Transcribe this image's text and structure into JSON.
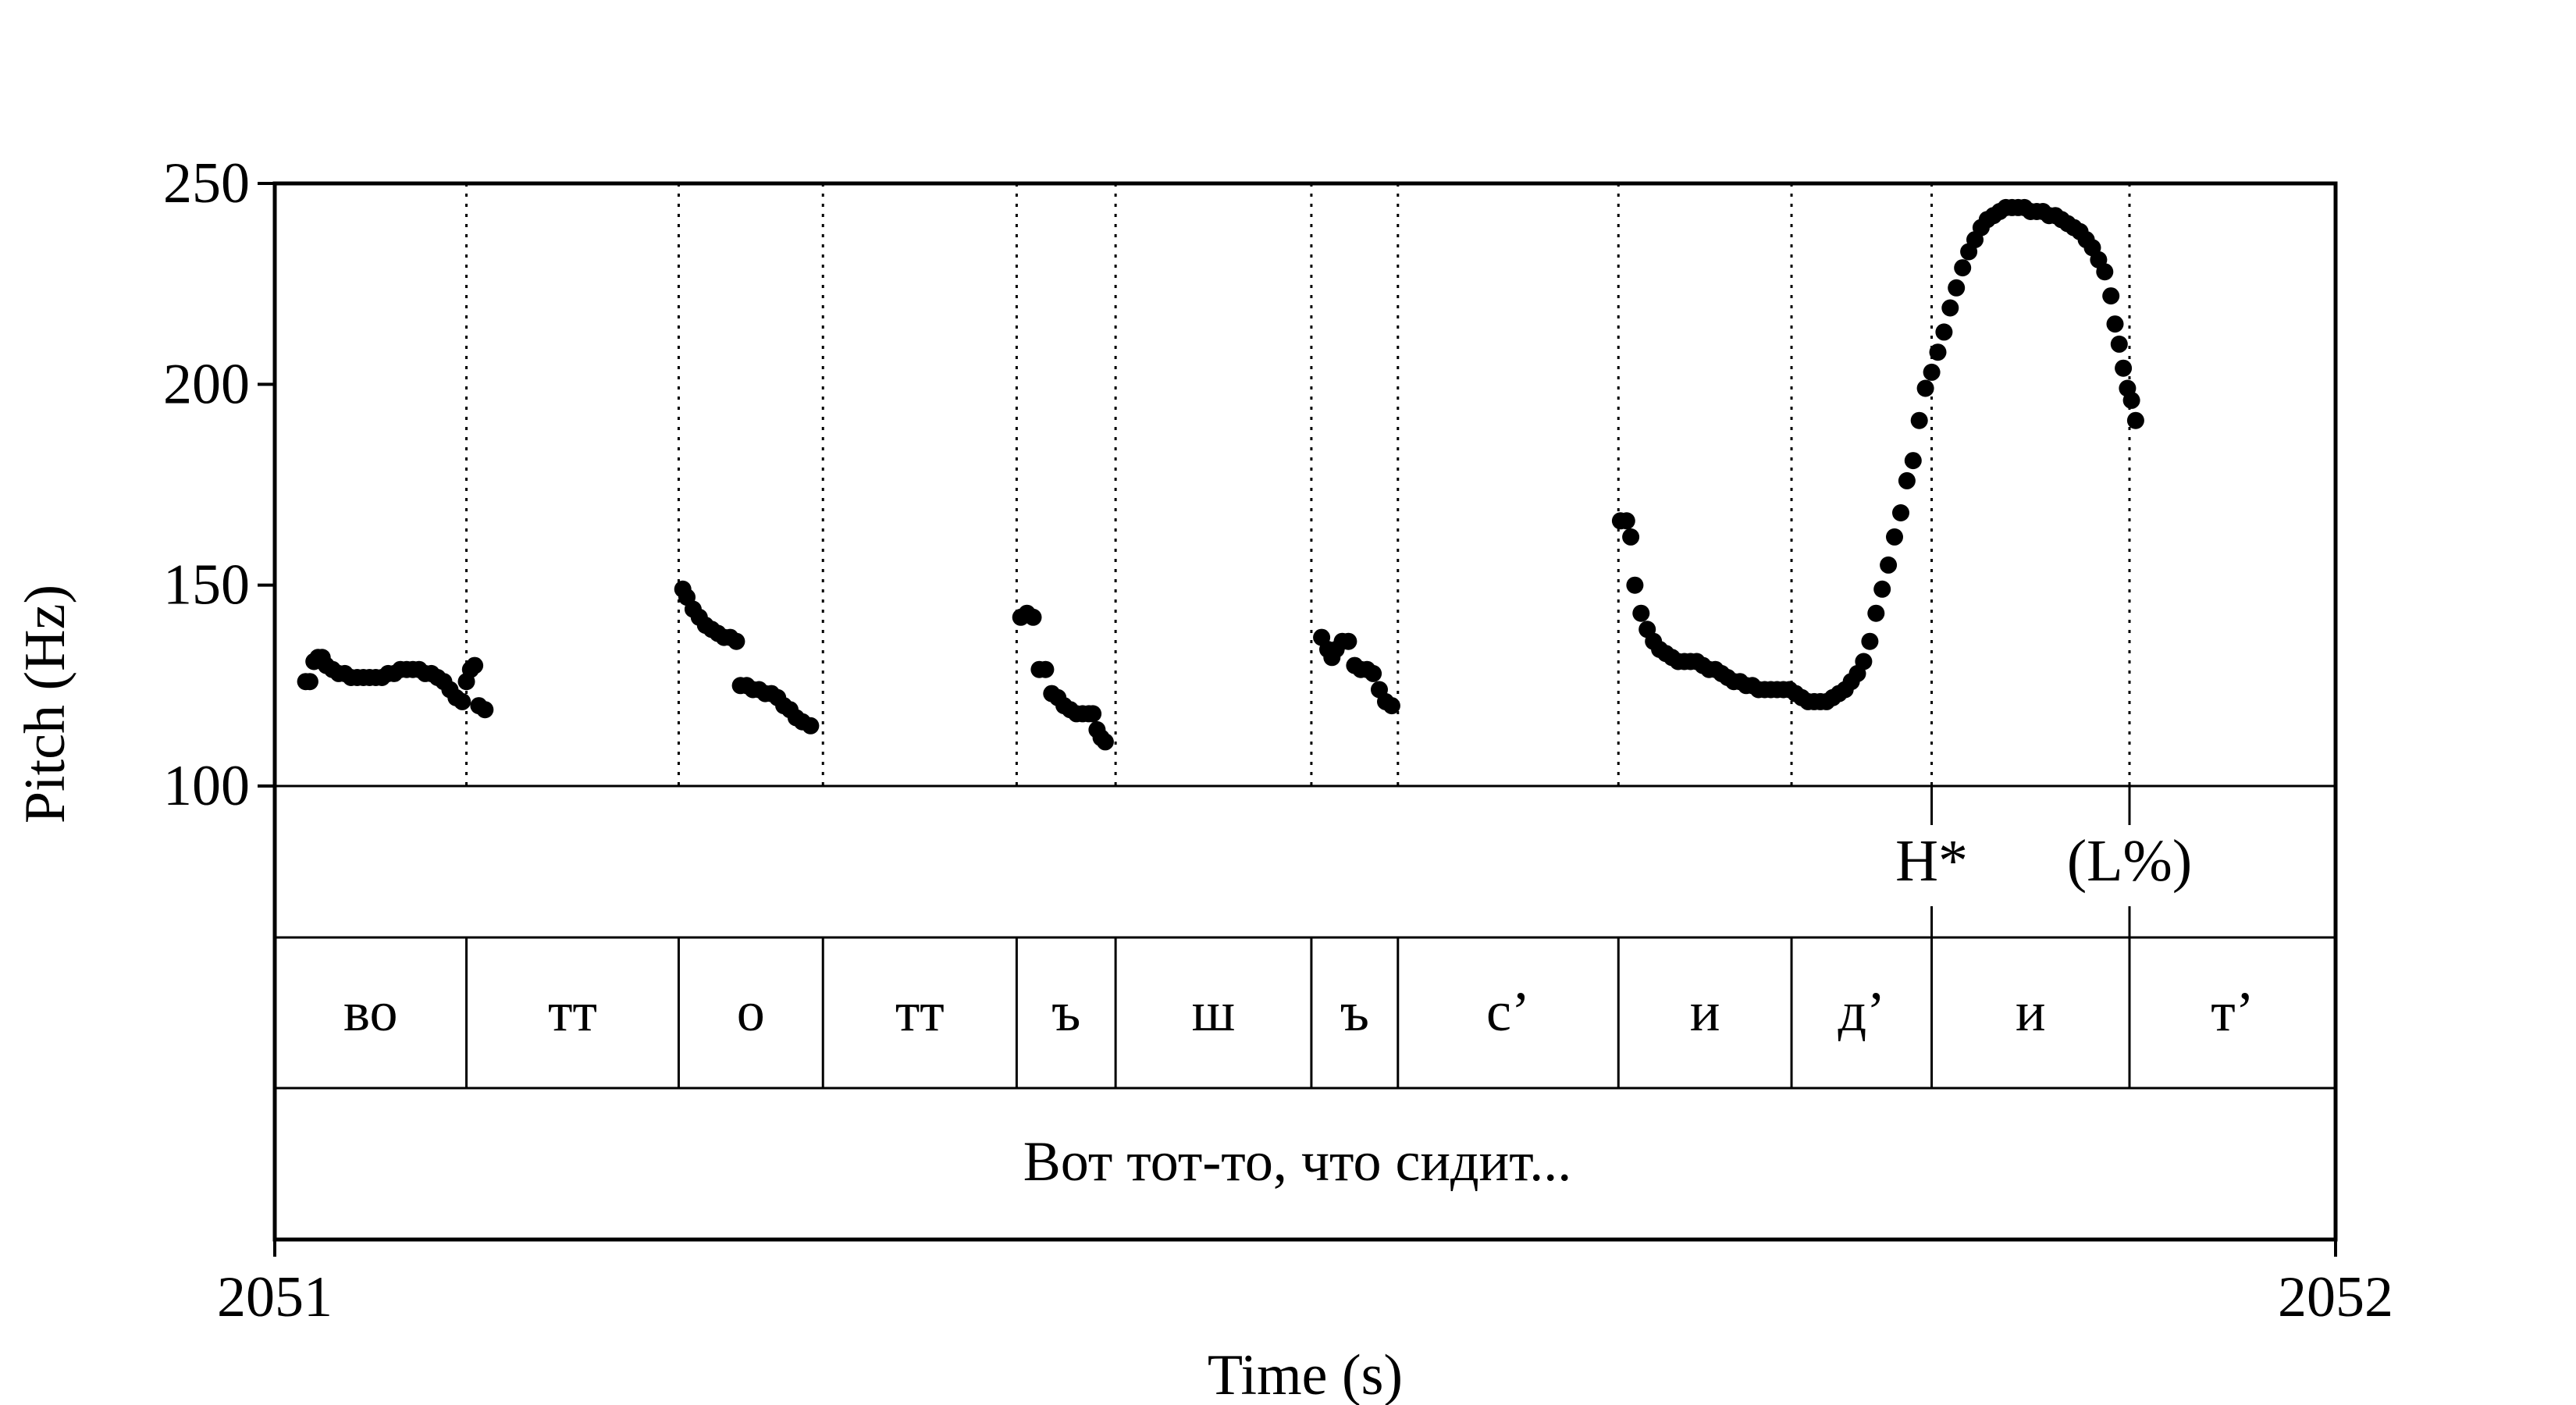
{
  "chart_data": {
    "type": "scatter",
    "title": "",
    "xlabel": "Time (s)",
    "ylabel": "Pitch (Hz)",
    "xlim": [
      2051,
      2052
    ],
    "ylim": [
      100,
      250
    ],
    "x_ticks": [
      "2051",
      "2052"
    ],
    "y_ticks": [
      "100",
      "150",
      "200",
      "250"
    ],
    "grid": false,
    "marker_color": "#000000",
    "boundaries": [
      2051.093,
      2051.196,
      2051.266,
      2051.36,
      2051.408,
      2051.503,
      2051.545,
      2051.652,
      2051.736,
      2051.804,
      2051.9
    ],
    "tones": [
      {
        "label": "H*",
        "t": 2051.804
      },
      {
        "label": "(L%)",
        "t": 2051.9
      }
    ],
    "segments": [
      {
        "label": "во",
        "start": 2051.0,
        "end": 2051.093
      },
      {
        "label": "тт",
        "start": 2051.093,
        "end": 2051.196
      },
      {
        "label": "о",
        "start": 2051.196,
        "end": 2051.266
      },
      {
        "label": "тт",
        "start": 2051.266,
        "end": 2051.36
      },
      {
        "label": "ъ",
        "start": 2051.36,
        "end": 2051.408
      },
      {
        "label": "ш",
        "start": 2051.408,
        "end": 2051.503
      },
      {
        "label": "ъ",
        "start": 2051.503,
        "end": 2051.545
      },
      {
        "label": "с’",
        "start": 2051.545,
        "end": 2051.652
      },
      {
        "label": "и",
        "start": 2051.652,
        "end": 2051.736
      },
      {
        "label": "д’",
        "start": 2051.736,
        "end": 2051.804
      },
      {
        "label": "и",
        "start": 2051.804,
        "end": 2051.9
      },
      {
        "label": "т’",
        "start": 2051.9,
        "end": 2052.0
      }
    ],
    "sentence": "Вот тот-то, что сидит...",
    "series": [
      {
        "points": [
          [
            2051.015,
            126
          ],
          [
            2051.017,
            126
          ],
          [
            2051.019,
            131
          ],
          [
            2051.021,
            132
          ],
          [
            2051.023,
            132
          ],
          [
            2051.025,
            130
          ],
          [
            2051.028,
            129
          ],
          [
            2051.031,
            128
          ],
          [
            2051.034,
            128
          ],
          [
            2051.037,
            127
          ],
          [
            2051.04,
            127
          ],
          [
            2051.043,
            127
          ],
          [
            2051.046,
            127
          ],
          [
            2051.049,
            127
          ],
          [
            2051.052,
            127
          ],
          [
            2051.055,
            128
          ],
          [
            2051.058,
            128
          ],
          [
            2051.061,
            129
          ],
          [
            2051.064,
            129
          ],
          [
            2051.067,
            129
          ],
          [
            2051.07,
            129
          ],
          [
            2051.073,
            128
          ],
          [
            2051.076,
            128
          ],
          [
            2051.079,
            127
          ],
          [
            2051.082,
            126
          ],
          [
            2051.085,
            124
          ],
          [
            2051.088,
            122
          ],
          [
            2051.091,
            121
          ],
          [
            2051.093,
            126
          ],
          [
            2051.095,
            129
          ],
          [
            2051.097,
            130
          ],
          [
            2051.099,
            120
          ],
          [
            2051.102,
            119
          ],
          [
            2051.198,
            149
          ],
          [
            2051.2,
            147
          ],
          [
            2051.203,
            144
          ],
          [
            2051.206,
            142
          ],
          [
            2051.209,
            140
          ],
          [
            2051.212,
            139
          ],
          [
            2051.215,
            138
          ],
          [
            2051.218,
            137
          ],
          [
            2051.221,
            137
          ],
          [
            2051.224,
            136
          ],
          [
            2051.226,
            125
          ],
          [
            2051.229,
            125
          ],
          [
            2051.232,
            124
          ],
          [
            2051.235,
            124
          ],
          [
            2051.238,
            123
          ],
          [
            2051.241,
            123
          ],
          [
            2051.244,
            122
          ],
          [
            2051.247,
            120
          ],
          [
            2051.25,
            119
          ],
          [
            2051.253,
            117
          ],
          [
            2051.256,
            116
          ],
          [
            2051.26,
            115
          ],
          [
            2051.362,
            142
          ],
          [
            2051.365,
            143
          ],
          [
            2051.368,
            142
          ],
          [
            2051.371,
            129
          ],
          [
            2051.374,
            129
          ],
          [
            2051.377,
            123
          ],
          [
            2051.38,
            122
          ],
          [
            2051.383,
            120
          ],
          [
            2051.386,
            119
          ],
          [
            2051.389,
            118
          ],
          [
            2051.392,
            118
          ],
          [
            2051.395,
            118
          ],
          [
            2051.397,
            118
          ],
          [
            2051.399,
            114
          ],
          [
            2051.401,
            112
          ],
          [
            2051.403,
            111
          ],
          [
            2051.508,
            137
          ],
          [
            2051.511,
            134
          ],
          [
            2051.513,
            132
          ],
          [
            2051.515,
            134
          ],
          [
            2051.518,
            136
          ],
          [
            2051.521,
            136
          ],
          [
            2051.524,
            130
          ],
          [
            2051.527,
            129
          ],
          [
            2051.53,
            129
          ],
          [
            2051.533,
            128
          ],
          [
            2051.536,
            124
          ],
          [
            2051.539,
            121
          ],
          [
            2051.542,
            120
          ],
          [
            2051.653,
            166
          ],
          [
            2051.656,
            166
          ],
          [
            2051.658,
            162
          ],
          [
            2051.66,
            150
          ],
          [
            2051.663,
            143
          ],
          [
            2051.666,
            139
          ],
          [
            2051.669,
            136
          ],
          [
            2051.672,
            134
          ],
          [
            2051.675,
            133
          ],
          [
            2051.678,
            132
          ],
          [
            2051.681,
            131
          ],
          [
            2051.684,
            131
          ],
          [
            2051.687,
            131
          ],
          [
            2051.69,
            131
          ],
          [
            2051.693,
            130
          ],
          [
            2051.696,
            129
          ],
          [
            2051.699,
            129
          ],
          [
            2051.702,
            128
          ],
          [
            2051.705,
            127
          ],
          [
            2051.708,
            126
          ],
          [
            2051.711,
            126
          ],
          [
            2051.714,
            125
          ],
          [
            2051.717,
            125
          ],
          [
            2051.72,
            124
          ],
          [
            2051.723,
            124
          ],
          [
            2051.726,
            124
          ],
          [
            2051.729,
            124
          ],
          [
            2051.732,
            124
          ],
          [
            2051.735,
            124
          ],
          [
            2051.738,
            123
          ],
          [
            2051.741,
            122
          ],
          [
            2051.744,
            121
          ],
          [
            2051.747,
            121
          ],
          [
            2051.75,
            121
          ],
          [
            2051.753,
            121
          ],
          [
            2051.756,
            122
          ],
          [
            2051.759,
            123
          ],
          [
            2051.762,
            124
          ],
          [
            2051.765,
            126
          ],
          [
            2051.768,
            128
          ],
          [
            2051.771,
            131
          ],
          [
            2051.774,
            136
          ],
          [
            2051.777,
            143
          ],
          [
            2051.78,
            149
          ],
          [
            2051.783,
            155
          ],
          [
            2051.786,
            162
          ],
          [
            2051.789,
            168
          ],
          [
            2051.792,
            176
          ],
          [
            2051.795,
            181
          ],
          [
            2051.798,
            191
          ],
          [
            2051.801,
            199
          ],
          [
            2051.804,
            203
          ],
          [
            2051.807,
            208
          ],
          [
            2051.81,
            213
          ],
          [
            2051.813,
            219
          ],
          [
            2051.816,
            224
          ],
          [
            2051.819,
            229
          ],
          [
            2051.822,
            233
          ],
          [
            2051.825,
            236
          ],
          [
            2051.828,
            239
          ],
          [
            2051.831,
            241
          ],
          [
            2051.834,
            242
          ],
          [
            2051.837,
            243
          ],
          [
            2051.84,
            244
          ],
          [
            2051.843,
            244
          ],
          [
            2051.846,
            244
          ],
          [
            2051.849,
            244
          ],
          [
            2051.852,
            243
          ],
          [
            2051.855,
            243
          ],
          [
            2051.858,
            243
          ],
          [
            2051.861,
            242
          ],
          [
            2051.864,
            242
          ],
          [
            2051.867,
            241
          ],
          [
            2051.87,
            240
          ],
          [
            2051.873,
            239
          ],
          [
            2051.876,
            238
          ],
          [
            2051.879,
            236
          ],
          [
            2051.882,
            234
          ],
          [
            2051.885,
            231
          ],
          [
            2051.888,
            228
          ],
          [
            2051.891,
            222
          ],
          [
            2051.893,
            215
          ],
          [
            2051.895,
            210
          ],
          [
            2051.897,
            204
          ],
          [
            2051.899,
            199
          ],
          [
            2051.901,
            196
          ],
          [
            2051.903,
            191
          ]
        ]
      }
    ]
  }
}
